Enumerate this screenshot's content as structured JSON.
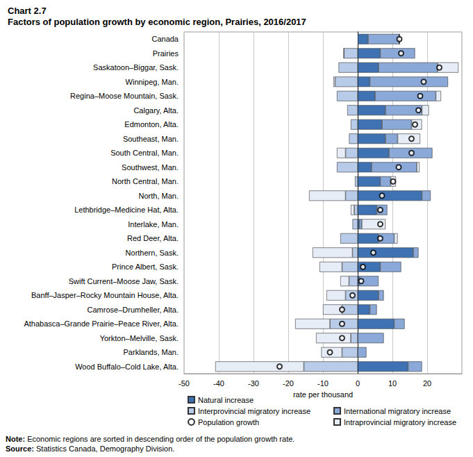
{
  "chart_data": {
    "type": "bar",
    "title": "Chart 2.7",
    "subtitle": "Factors of population growth by economic region, Prairies, 2016/2017",
    "x_label": "rate per thousand",
    "orientation": "horizontal",
    "stacked": true,
    "grid": true,
    "legend": "bottom",
    "categories": [
      "Canada",
      "Prairies",
      "Saskatoon–Biggar, Sask.",
      "Winnipeg, Man.",
      "Regina–Moose Mountain, Sask.",
      "Calgary, Alta.",
      "Edmonton, Alta.",
      "Southeast, Man.",
      "South Central, Man.",
      "Southwest, Man.",
      "North Central, Man.",
      "North, Man.",
      "Lethbridge–Medicine Hat, Alta.",
      "Interlake, Man.",
      "Red Deer, Alta.",
      "Northern, Sask.",
      "Prince Albert, Sask.",
      "Swift Current–Moose Jaw, Sask.",
      "Banff–Jasper–Rocky Mountain House, Alta.",
      "Camrose–Drumheller, Alta.",
      "Athabasca–Grande Prairie–Peace River, Alta.",
      "Yorkton–Melville, Sask.",
      "Parklands, Man.",
      "Wood Buffalo–Cold Lake, Alta."
    ],
    "series": [
      {
        "name": "Natural increase",
        "type": "bar",
        "color": "#3e72b3",
        "values": [
          3,
          6.5,
          6,
          3.5,
          5,
          8,
          7,
          8,
          9,
          4,
          6.5,
          18.5,
          5.5,
          0.5,
          6,
          16,
          6.5,
          0.5,
          6,
          3.5,
          10.5,
          0,
          0,
          14.5
        ]
      },
      {
        "name": "International migratory increase",
        "type": "bar",
        "color": "#8aa9d8",
        "values": [
          9,
          10,
          17,
          22.5,
          17.5,
          10.5,
          8.5,
          3.5,
          12.5,
          13,
          3,
          2.5,
          3,
          0.7,
          4.5,
          1.5,
          6,
          5.5,
          1.5,
          2,
          3,
          7.5,
          2.5,
          4
        ]
      },
      {
        "name": "Interprovincial migratory increase",
        "type": "bar",
        "color": "#b8cbe8",
        "values": [
          0,
          -4,
          -5.5,
          -6.5,
          -6,
          -3,
          -2,
          -2.5,
          -3.5,
          -6,
          -0.8,
          -3.5,
          -1,
          -1.5,
          -5,
          -1.5,
          -4.5,
          -2.5,
          -3.5,
          -4.5,
          -8,
          -2,
          -4.5,
          -15.5
        ]
      },
      {
        "name": "Intraprovincial migratory increase",
        "type": "bar",
        "color": "#e6edf7",
        "values": [
          0,
          0,
          6,
          -0.5,
          1.5,
          2,
          3,
          6.5,
          -2.5,
          0.8,
          1.5,
          -10.5,
          -1,
          6.8,
          1,
          -11.5,
          -6.5,
          -2.5,
          -5.5,
          -5.5,
          -10,
          -10,
          -6,
          -25.5
        ]
      },
      {
        "name": "Population growth",
        "type": "scatter",
        "marker": "circle",
        "color": "#ffffff",
        "values": [
          12,
          12.5,
          23.5,
          19,
          18,
          17.5,
          16.5,
          15.5,
          15.5,
          11.8,
          10.2,
          7,
          6.5,
          6.5,
          6.5,
          4.5,
          1.5,
          1,
          -1.5,
          -4.5,
          -4.5,
          -4.5,
          -8,
          -22.5
        ]
      }
    ],
    "xlim": [
      -50,
      30
    ],
    "xticks": [
      -50,
      -40,
      -30,
      -20,
      -10,
      0,
      10,
      20
    ],
    "annotations": [
      "Note: Economic regions are sorted in descending order of the population growth rate.",
      "Source: Statistics Canada, Demography Division."
    ]
  }
}
